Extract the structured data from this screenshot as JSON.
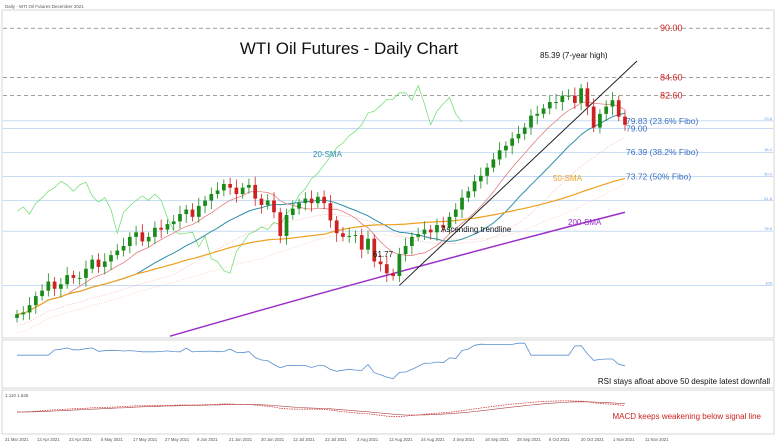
{
  "header": {
    "symbol": "Daily · WTI Oil Futures December 2021"
  },
  "chart_data": {
    "type": "candlestick",
    "title": "WTI Oil Futures - Daily Chart",
    "dates": [
      "31 Mar 2021",
      "13 Apr 2021",
      "23 Apr 2021",
      "5 May 2021",
      "17 May 2021",
      "27 May 2021",
      "9 Jun 2021",
      "21 Jun 2021",
      "30 Jun 2021",
      "12 Jul 2021",
      "22 Jul 2021",
      "3 Aug 2021",
      "12 Aug 2021",
      "24 Aug 2021",
      "3 Sep 2021",
      "16 Sep 2021",
      "28 Sep 2021",
      "8 Oct 2021",
      "20 Oct 2021",
      "1 Nov 2021",
      "11 Nov 2021"
    ],
    "close": [
      58.6,
      58.8,
      59.6,
      60.6,
      61.2,
      62.2,
      61.4,
      61.9,
      62.9,
      62.6,
      62.6,
      63.6,
      64.6,
      63.8,
      64.4,
      65.1,
      65.6,
      66.1,
      67.1,
      67.6,
      66.6,
      67.1,
      68.1,
      67.9,
      68.5,
      68.8,
      69.6,
      70.1,
      69.3,
      70.5,
      71.1,
      71.8,
      72.2,
      72.9,
      72.5,
      71.8,
      72.5,
      72.8,
      71.3,
      70.6,
      71.1,
      69.8,
      67.2,
      69.5,
      70.2,
      70.8,
      71.3,
      70.8,
      71.5,
      70.8,
      68.9,
      67.5,
      67.1,
      67.2,
      67.3,
      65.7,
      66.9,
      64.4,
      64.1,
      63.1,
      62.8,
      65.2,
      66.1,
      67.1,
      67.4,
      67.9,
      67.6,
      68.4,
      68.1,
      69.3,
      70.1,
      71.4,
      72.1,
      73.2,
      73.8,
      74.7,
      75.6,
      76.6,
      77.1,
      77.9,
      78.4,
      79.1,
      80.4,
      80.6,
      81.2,
      81.9,
      81.9,
      82.6,
      82.6,
      81.8,
      83.4,
      81.4,
      79.1,
      80.6,
      81.4,
      82.1,
      80.3,
      79.4
    ],
    "levels": [
      {
        "value": 90.0,
        "label": "90.00"
      },
      {
        "value": 84.6,
        "label": "84.60"
      },
      {
        "value": 82.6,
        "label": "82.60"
      },
      {
        "value": 79.83,
        "label": "79.83 (23.6% Fibo)"
      },
      {
        "value": 79.0,
        "label": "79.00"
      },
      {
        "value": 76.39,
        "label": "76.39 (38.2% Fibo)"
      },
      {
        "value": 73.72,
        "label": "73.72 (50% Fibo)"
      },
      {
        "value": 71.06,
        "label": ""
      },
      {
        "value": 67.73,
        "label": ""
      },
      {
        "value": 61.77,
        "label": ""
      }
    ],
    "fibo_tags": [
      "23.6",
      "38.2",
      "50.0",
      "61.8",
      "78.6",
      "100"
    ],
    "annotations": {
      "high": "85.39 (7-year high)",
      "low": "61.77",
      "sma20": "20-SMA",
      "sma50": "50-SMA",
      "sma200": "200-SMA",
      "trendline": "Ascending trendline"
    },
    "ylim": [
      56,
      92
    ],
    "rsi_note": "RSI stays afloat above 50 despite latest downfall",
    "macd_header": "1.110 1.635",
    "macd_note": "MACD keeps weakening below signal line",
    "colors": {
      "bull": "#1a8a1a",
      "bear": "#cc2222",
      "sma20": "#2e8fa8",
      "sma50": "#f0a020",
      "sma200": "#9b30c8",
      "level_red": "#cc2222",
      "fibo": "#6fa0e0",
      "chikou": "#66dd66",
      "trend": "#222222"
    }
  }
}
